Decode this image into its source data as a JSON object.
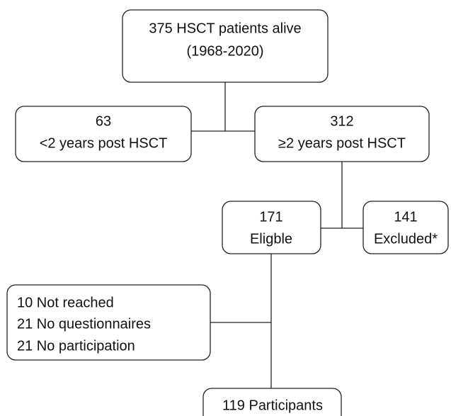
{
  "nodes": [
    {
      "lines": [
        "375 HSCT patients alive",
        "(1968-2020)"
      ]
    },
    {
      "lines": [
        "63",
        "<2 years post HSCT"
      ]
    },
    {
      "lines": [
        "312",
        "≥2 years post HSCT"
      ]
    },
    {
      "lines": [
        "171",
        "Eligble"
      ]
    },
    {
      "lines": [
        "141",
        "Excluded*"
      ]
    },
    {
      "lines": [
        "10 Not reached",
        "21 No questionnaires",
        "21 No participation"
      ]
    },
    {
      "lines": [
        "119 Participants"
      ]
    }
  ]
}
